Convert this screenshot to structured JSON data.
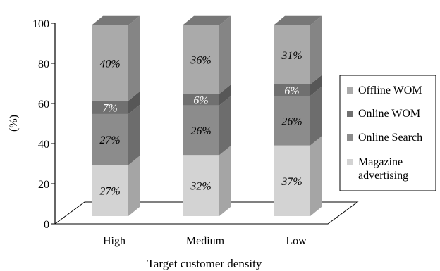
{
  "chart_data": {
    "type": "bar",
    "stacked": true,
    "style": "3d",
    "categories": [
      "High",
      "Medium",
      "Low"
    ],
    "series": [
      {
        "name": "Magazine advertising",
        "values": [
          27,
          32,
          37
        ],
        "labels": [
          "27%",
          "32%",
          "37%"
        ],
        "color": "#d3d3d3"
      },
      {
        "name": "Online Search",
        "values": [
          27,
          26,
          26
        ],
        "labels": [
          "27%",
          "26%",
          "26%"
        ],
        "color": "#8c8c8c"
      },
      {
        "name": "Online WOM",
        "values": [
          7,
          6,
          6
        ],
        "labels": [
          "7%",
          "6%",
          "6%"
        ],
        "color": "#707070"
      },
      {
        "name": "Offline WOM",
        "values": [
          40,
          36,
          31
        ],
        "labels": [
          "40%",
          "36%",
          "31%"
        ],
        "color": "#aaaaaa"
      }
    ],
    "legend_lines": {
      "Offline WOM": [
        "Offline WOM"
      ],
      "Online WOM": [
        "Online WOM"
      ],
      "Online Search": [
        "Online Search"
      ],
      "Magazine advertising": [
        "Magazine",
        "advertising"
      ]
    },
    "legend_order": [
      "Offline WOM",
      "Online WOM",
      "Online Search",
      "Magazine advertising"
    ],
    "legend_position": "right",
    "xlabel": "Target customer density",
    "ylabel": "(%)",
    "yticks": [
      "0",
      "20",
      "40",
      "60",
      "80",
      "100"
    ],
    "ylim": [
      0,
      100
    ],
    "grid": false
  }
}
